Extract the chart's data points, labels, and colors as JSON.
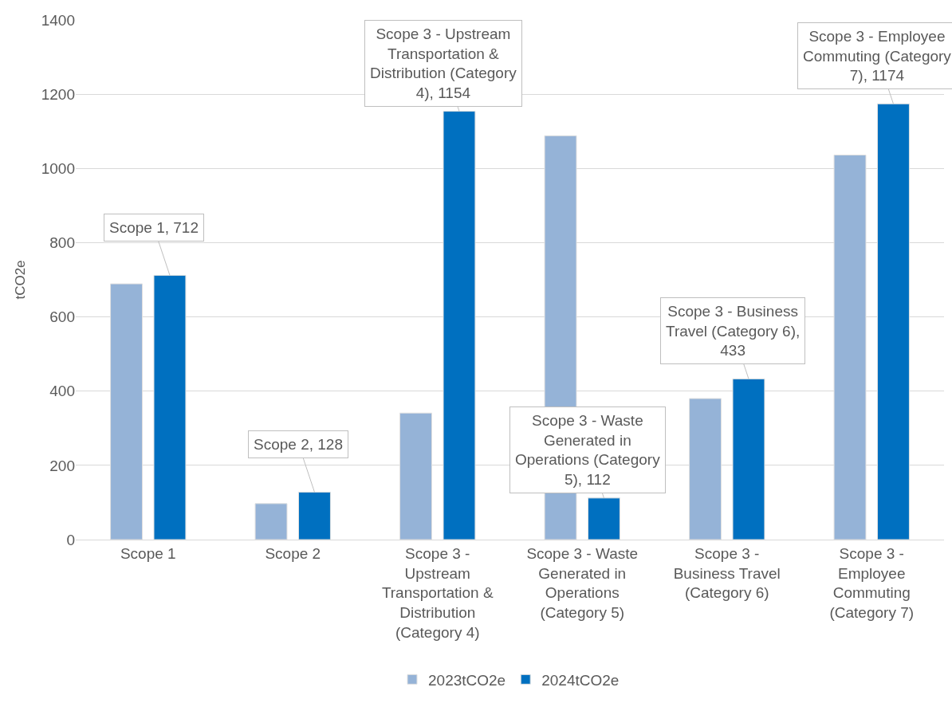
{
  "chart_data": {
    "type": "bar",
    "ylabel": "tCO2e",
    "categories": [
      "Scope 1",
      "Scope 2",
      "Scope 3 - Upstream Transportation & Distribution (Category 4)",
      "Scope 3 - Waste Generated in Operations (Category 5)",
      "Scope 3 - Business Travel (Category 6)",
      "Scope 3 - Employee Commuting (Category 7)"
    ],
    "series": [
      {
        "name": "2023tCO2e",
        "color": "#95b3d7",
        "values": [
          689,
          97,
          341,
          1088,
          380,
          1036
        ]
      },
      {
        "name": "2024tCO2e",
        "color": "#0070c0",
        "values": [
          712,
          128,
          1154,
          112,
          433,
          1174
        ],
        "value_labels": [
          "Scope 1, 712",
          "Scope 2, 128",
          "Scope 3 - Upstream Transportation & Distribution (Category 4), 1154",
          "Scope 3 - Waste Generated in Operations (Category 5), 112",
          "Scope 3 - Business Travel (Category 6), 433",
          "Scope 3 - Employee Commuting (Category 7), 1174"
        ]
      }
    ],
    "ylim": [
      0,
      1400
    ],
    "yticks": [
      0,
      200,
      400,
      600,
      800,
      1000,
      1200,
      1400
    ],
    "grid": "y",
    "legend": "bottom"
  }
}
